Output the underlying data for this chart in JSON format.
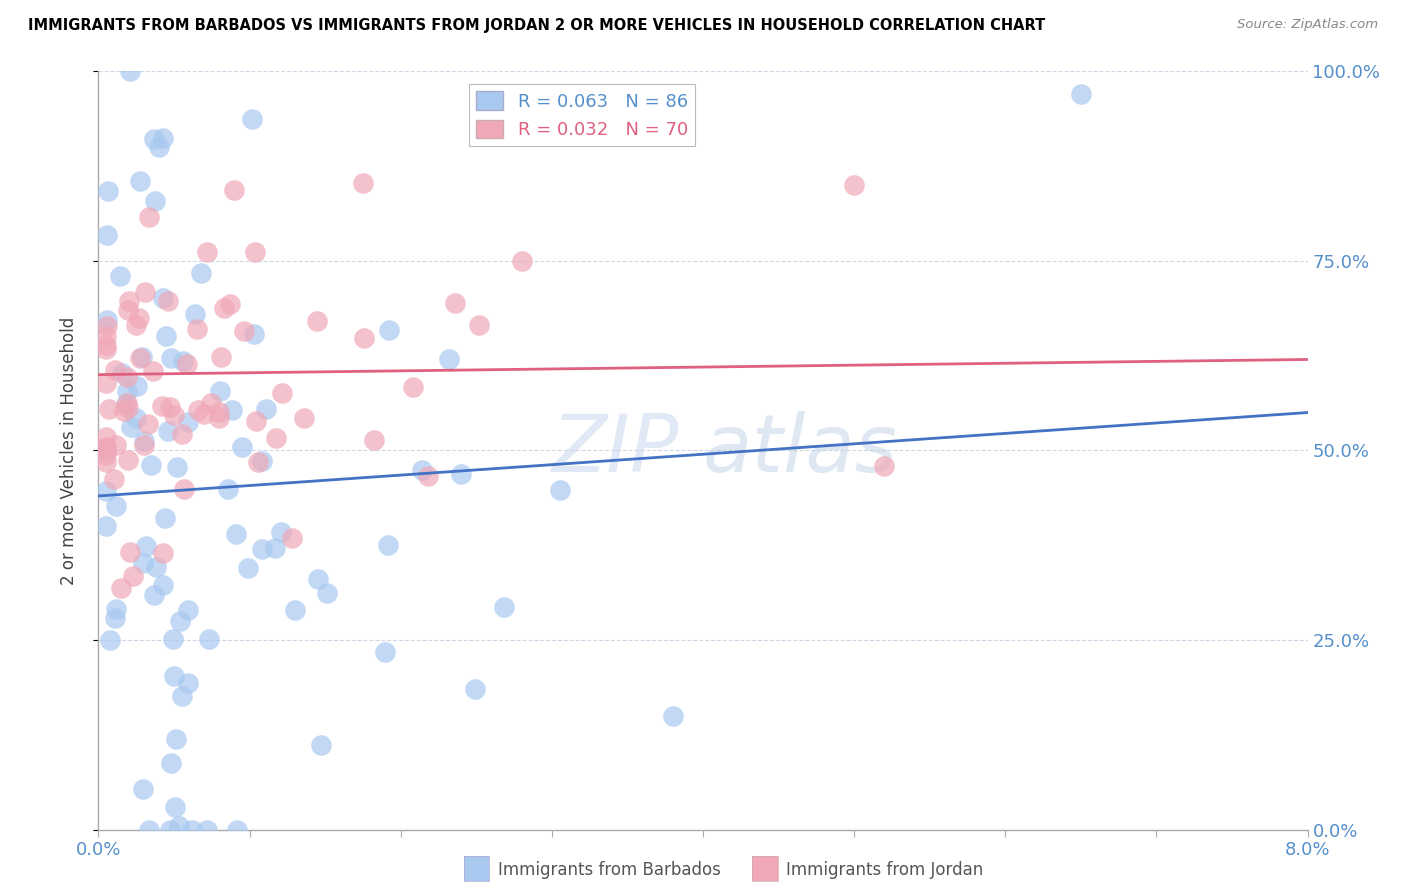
{
  "title": "IMMIGRANTS FROM BARBADOS VS IMMIGRANTS FROM JORDAN 2 OR MORE VEHICLES IN HOUSEHOLD CORRELATION CHART",
  "source": "Source: ZipAtlas.com",
  "xlabel_barbados": "Immigrants from Barbados",
  "xlabel_jordan": "Immigrants from Jordan",
  "ylabel": "2 or more Vehicles in Household",
  "xlim": [
    0.0,
    0.08
  ],
  "ylim": [
    0.0,
    1.0
  ],
  "ytick_vals": [
    0.0,
    0.25,
    0.5,
    0.75,
    1.0
  ],
  "ytick_labels_right": [
    "0.0%",
    "25.0%",
    "50.0%",
    "75.0%",
    "100.0%"
  ],
  "xtick_vals": [
    0.0,
    0.01,
    0.02,
    0.03,
    0.04,
    0.05,
    0.06,
    0.07,
    0.08
  ],
  "legend_barbados": "R = 0.063   N = 86",
  "legend_jordan": "R = 0.032   N = 70",
  "color_barbados": "#a8c8f0",
  "color_jordan": "#f0a8b8",
  "color_barbados_line": "#4472c4",
  "color_jordan_line": "#e06080",
  "watermark_zip": "ZIP",
  "watermark_atlas": "atlas",
  "grid_color": "#d0d8e8",
  "tick_color": "#5590cc"
}
